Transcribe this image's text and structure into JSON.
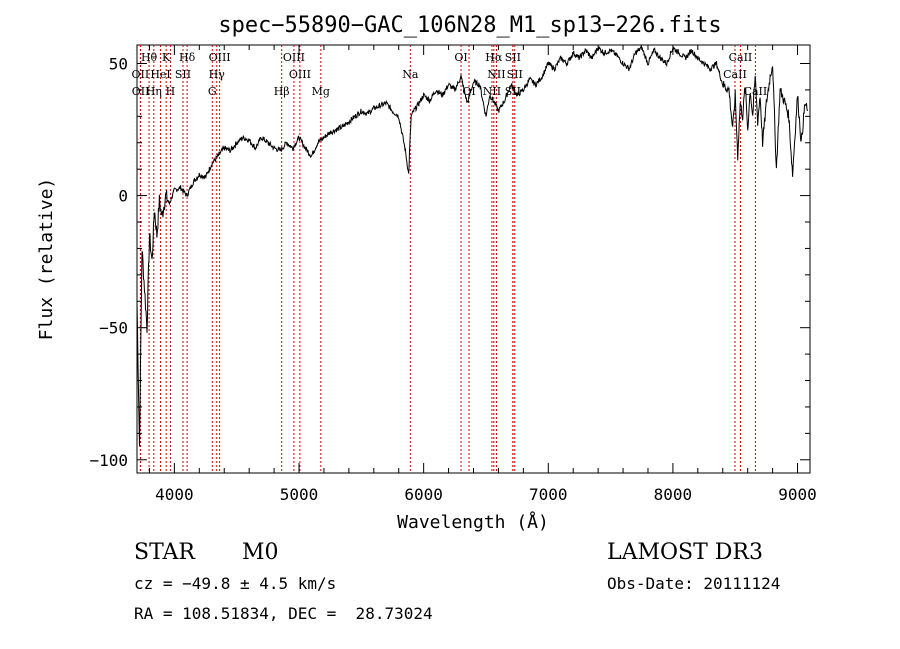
{
  "chart_data": {
    "type": "line",
    "title": "spec−55890−GAC_106N28_M1_sp13−226.fits",
    "xlabel": "Wavelength (Å)",
    "ylabel": "Flux (relative)",
    "xlim": [
      3700,
      9100
    ],
    "ylim": [
      -105,
      57
    ],
    "xticks": [
      4000,
      5000,
      6000,
      7000,
      8000,
      9000
    ],
    "xtick_labels": [
      "4000",
      "5000",
      "6000",
      "7000",
      "8000",
      "9000"
    ],
    "yticks": [
      -100,
      -50,
      0,
      50
    ],
    "ytick_labels": [
      "−100",
      "−50",
      "0",
      "50"
    ],
    "series": [
      {
        "name": "spectrum",
        "x": [
          3700,
          3720,
          3740,
          3760,
          3780,
          3800,
          3820,
          3840,
          3860,
          3880,
          3900,
          3930,
          3960,
          4000,
          4050,
          4100,
          4150,
          4200,
          4250,
          4300,
          4350,
          4400,
          4450,
          4500,
          4550,
          4600,
          4650,
          4700,
          4750,
          4800,
          4850,
          4900,
          4950,
          5000,
          5050,
          5100,
          5150,
          5200,
          5250,
          5300,
          5350,
          5400,
          5450,
          5500,
          5550,
          5600,
          5650,
          5700,
          5750,
          5800,
          5850,
          5880,
          5890,
          5900,
          5920,
          5950,
          6000,
          6050,
          6100,
          6150,
          6200,
          6250,
          6300,
          6350,
          6400,
          6450,
          6500,
          6530,
          6560,
          6600,
          6650,
          6700,
          6750,
          6800,
          6850,
          6900,
          6950,
          7000,
          7050,
          7100,
          7150,
          7200,
          7250,
          7300,
          7350,
          7400,
          7450,
          7500,
          7550,
          7600,
          7650,
          7700,
          7750,
          7800,
          7850,
          7900,
          7950,
          8000,
          8050,
          8100,
          8150,
          8200,
          8250,
          8300,
          8350,
          8400,
          8450,
          8480,
          8500,
          8520,
          8540,
          8560,
          8580,
          8600,
          8620,
          8640,
          8660,
          8680,
          8700,
          8720,
          8750,
          8780,
          8800,
          8830,
          8860,
          8900,
          8930,
          8960,
          9000,
          9030,
          9060,
          9080
        ],
        "values": [
          -40,
          -95,
          -20,
          -35,
          -50,
          -15,
          -25,
          -5,
          -15,
          -2,
          -8,
          0,
          -3,
          2,
          3,
          0,
          5,
          8,
          7,
          12,
          15,
          18,
          17,
          20,
          22,
          21,
          18,
          22,
          20,
          18,
          17,
          20,
          18,
          22,
          18,
          15,
          20,
          22,
          24,
          25,
          26,
          28,
          30,
          32,
          31,
          33,
          34,
          35,
          32,
          30,
          18,
          8,
          20,
          30,
          32,
          34,
          38,
          36,
          40,
          38,
          42,
          40,
          45,
          35,
          43,
          42,
          30,
          38,
          36,
          32,
          36,
          42,
          38,
          40,
          44,
          42,
          45,
          50,
          48,
          52,
          50,
          54,
          52,
          55,
          52,
          56,
          54,
          55,
          53,
          50,
          48,
          54,
          56,
          50,
          55,
          52,
          50,
          56,
          54,
          52,
          55,
          52,
          50,
          48,
          50,
          42,
          40,
          25,
          38,
          15,
          35,
          30,
          42,
          25,
          40,
          30,
          45,
          28,
          38,
          20,
          35,
          45,
          50,
          10,
          40,
          35,
          30,
          8,
          38,
          20,
          35,
          32
        ]
      }
    ],
    "lines": [
      {
        "label": "Hθ",
        "x": 3797,
        "row": 1
      },
      {
        "label": "K",
        "x": 3934,
        "row": 1
      },
      {
        "label": "Hδ",
        "x": 4102,
        "row": 1
      },
      {
        "label": "OIII",
        "x": 4363,
        "row": 1
      },
      {
        "label": "OIII",
        "x": 4959,
        "row": 1
      },
      {
        "label": "OI",
        "x": 6300,
        "row": 1
      },
      {
        "label": "Hα",
        "x": 6563,
        "row": 1
      },
      {
        "label": "SII",
        "x": 6716,
        "row": 1
      },
      {
        "label": "CaII",
        "x": 8542,
        "row": 1
      },
      {
        "label": "OII",
        "x": 3727,
        "row": 2
      },
      {
        "label": "HeI",
        "x": 3889,
        "row": 2
      },
      {
        "label": "SII",
        "x": 4069,
        "row": 2
      },
      {
        "label": "Hγ",
        "x": 4340,
        "row": 2
      },
      {
        "label": "OIII",
        "x": 5007,
        "row": 2
      },
      {
        "label": "Na",
        "x": 5893,
        "row": 2
      },
      {
        "label": "NII",
        "x": 6584,
        "row": 2
      },
      {
        "label": "SII",
        "x": 6731,
        "row": 2
      },
      {
        "label": "CaII",
        "x": 8498,
        "row": 2
      },
      {
        "label": "OII",
        "x": 3729,
        "row": 3
      },
      {
        "label": "Hη",
        "x": 3835,
        "row": 3
      },
      {
        "label": "H",
        "x": 3968,
        "row": 3
      },
      {
        "label": "G",
        "x": 4304,
        "row": 3
      },
      {
        "label": "Hβ",
        "x": 4861,
        "row": 3
      },
      {
        "label": "Mg",
        "x": 5175,
        "row": 3
      },
      {
        "label": "OI",
        "x": 6364,
        "row": 3
      },
      {
        "label": "NII",
        "x": 6548,
        "row": 3
      },
      {
        "label": "SII",
        "x": 6716,
        "row": 3
      },
      {
        "label": "CaII",
        "x": 8662,
        "row": 3
      }
    ]
  },
  "info": {
    "object_class": "STAR",
    "subclass": "M0",
    "survey": "LAMOST DR3",
    "cz": "cz = −49.8 ± 4.5 km/s",
    "obs_date": "Obs-Date: 20111124",
    "coords": "RA = 108.51834, DEC =  28.73024"
  }
}
